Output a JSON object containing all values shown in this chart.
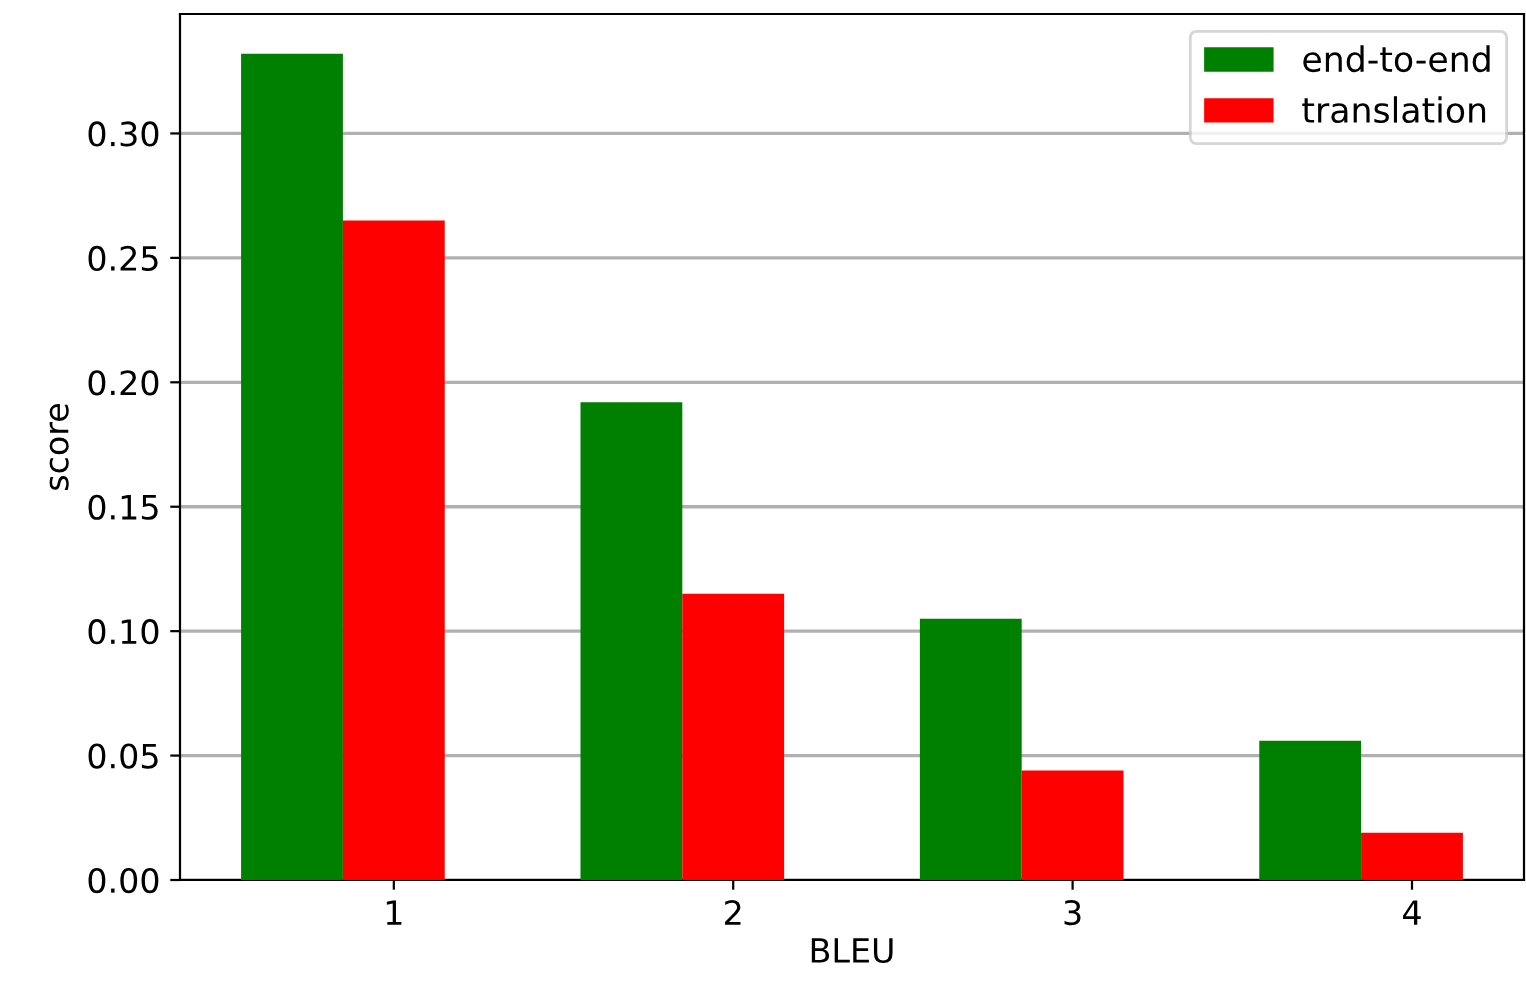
{
  "chart_data": {
    "type": "bar",
    "xlabel": "BLEU",
    "ylabel": "score",
    "categories": [
      "1",
      "2",
      "3",
      "4"
    ],
    "series": [
      {
        "name": "end-to-end",
        "color": "#008000",
        "values": [
          0.332,
          0.192,
          0.105,
          0.056
        ]
      },
      {
        "name": "translation",
        "color": "#ff0000",
        "values": [
          0.265,
          0.115,
          0.044,
          0.019
        ]
      }
    ],
    "ylim": [
      0,
      0.348
    ],
    "yticks": [
      {
        "value": 0,
        "label": "0.00"
      },
      {
        "value": 0.05,
        "label": "0.05"
      },
      {
        "value": 0.1,
        "label": "0.10"
      },
      {
        "value": 0.15,
        "label": "0.15"
      },
      {
        "value": 0.2,
        "label": "0.20"
      },
      {
        "value": 0.25,
        "label": "0.25"
      },
      {
        "value": 0.3,
        "label": "0.30"
      }
    ],
    "grid": "y",
    "legend": "top right"
  }
}
